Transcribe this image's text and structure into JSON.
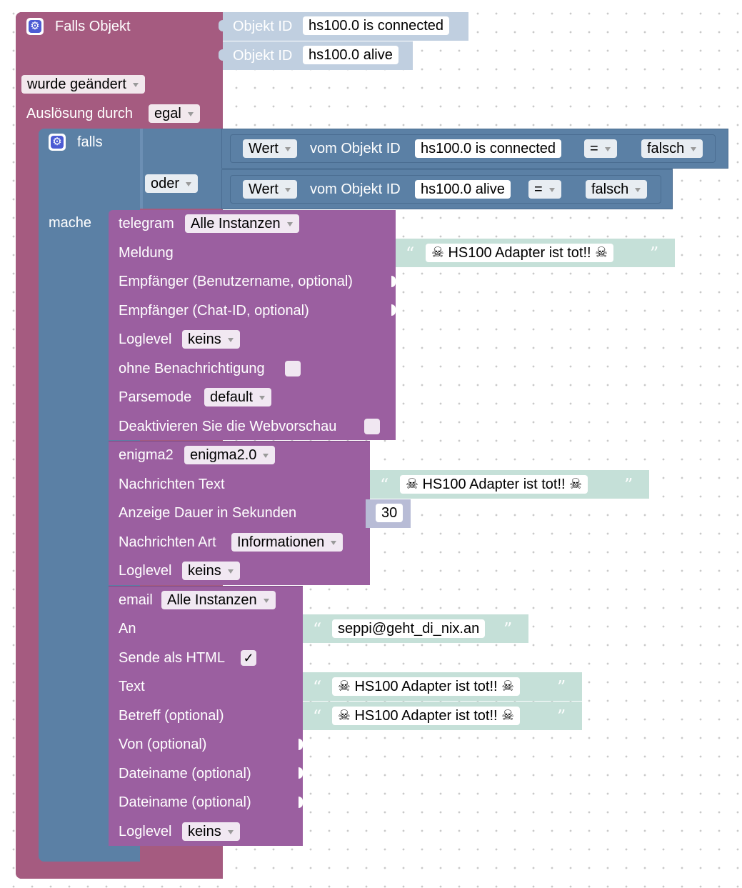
{
  "trigger": {
    "title": "Falls Objekt",
    "objekt_label": "Objekt ID",
    "obj1": "hs100.0 is connected",
    "obj2": "hs100.0 alive",
    "changed": "wurde geändert",
    "ausloesung_label": "Auslösung durch",
    "ausloesung": "egal"
  },
  "falls": {
    "label": "falls",
    "oder": "oder",
    "mache": "mache",
    "cond1": {
      "wert": "Wert",
      "vom": "vom Objekt ID",
      "obj": "hs100.0 is connected",
      "op": "=",
      "val": "falsch"
    },
    "cond2": {
      "wert": "Wert",
      "vom": "vom Objekt ID",
      "obj": "hs100.0 alive",
      "op": "=",
      "val": "falsch"
    }
  },
  "telegram": {
    "label": "telegram",
    "instance": "Alle Instanzen",
    "meldung": "Meldung",
    "msg_text": "☠ HS100 Adapter ist tot!! ☠",
    "empf_user": "Empfänger (Benutzername, optional)",
    "empf_chat": "Empfänger (Chat-ID, optional)",
    "loglevel": "Loglevel",
    "loglevel_val": "keins",
    "ohne": "ohne Benachrichtigung",
    "parsemode": "Parsemode",
    "parsemode_val": "default",
    "webvorschau": "Deaktivieren Sie die Webvorschau"
  },
  "enigma": {
    "label": "enigma2",
    "instance": "enigma2.0",
    "text_label": "Nachrichten Text",
    "msg_text": "☠ HS100 Adapter ist tot!! ☠",
    "dauer": "Anzeige Dauer in Sekunden",
    "dauer_val": "30",
    "art": "Nachrichten Art",
    "art_val": "Informationen",
    "loglevel": "Loglevel",
    "loglevel_val": "keins"
  },
  "email": {
    "label": "email",
    "instance": "Alle Instanzen",
    "an": "An",
    "an_val": "seppi@geht_di_nix.an",
    "html": "Sende als HTML",
    "html_check": "✓",
    "text": "Text",
    "text_val": "☠ HS100 Adapter ist tot!! ☠",
    "betreff": "Betreff (optional)",
    "betreff_val": "☠ HS100 Adapter ist tot!! ☠",
    "von": "Von (optional)",
    "datei1": "Dateiname (optional)",
    "datei2": "Dateiname (optional)",
    "loglevel": "Loglevel",
    "loglevel_val": "keins"
  },
  "quote_open": "“",
  "quote_close": "”",
  "colors": {
    "trigger": "#a55b80",
    "logic": "#5b80a5",
    "message": "#9b5fa0",
    "text": "#c5e0d8",
    "number": "#b8bcd6"
  }
}
